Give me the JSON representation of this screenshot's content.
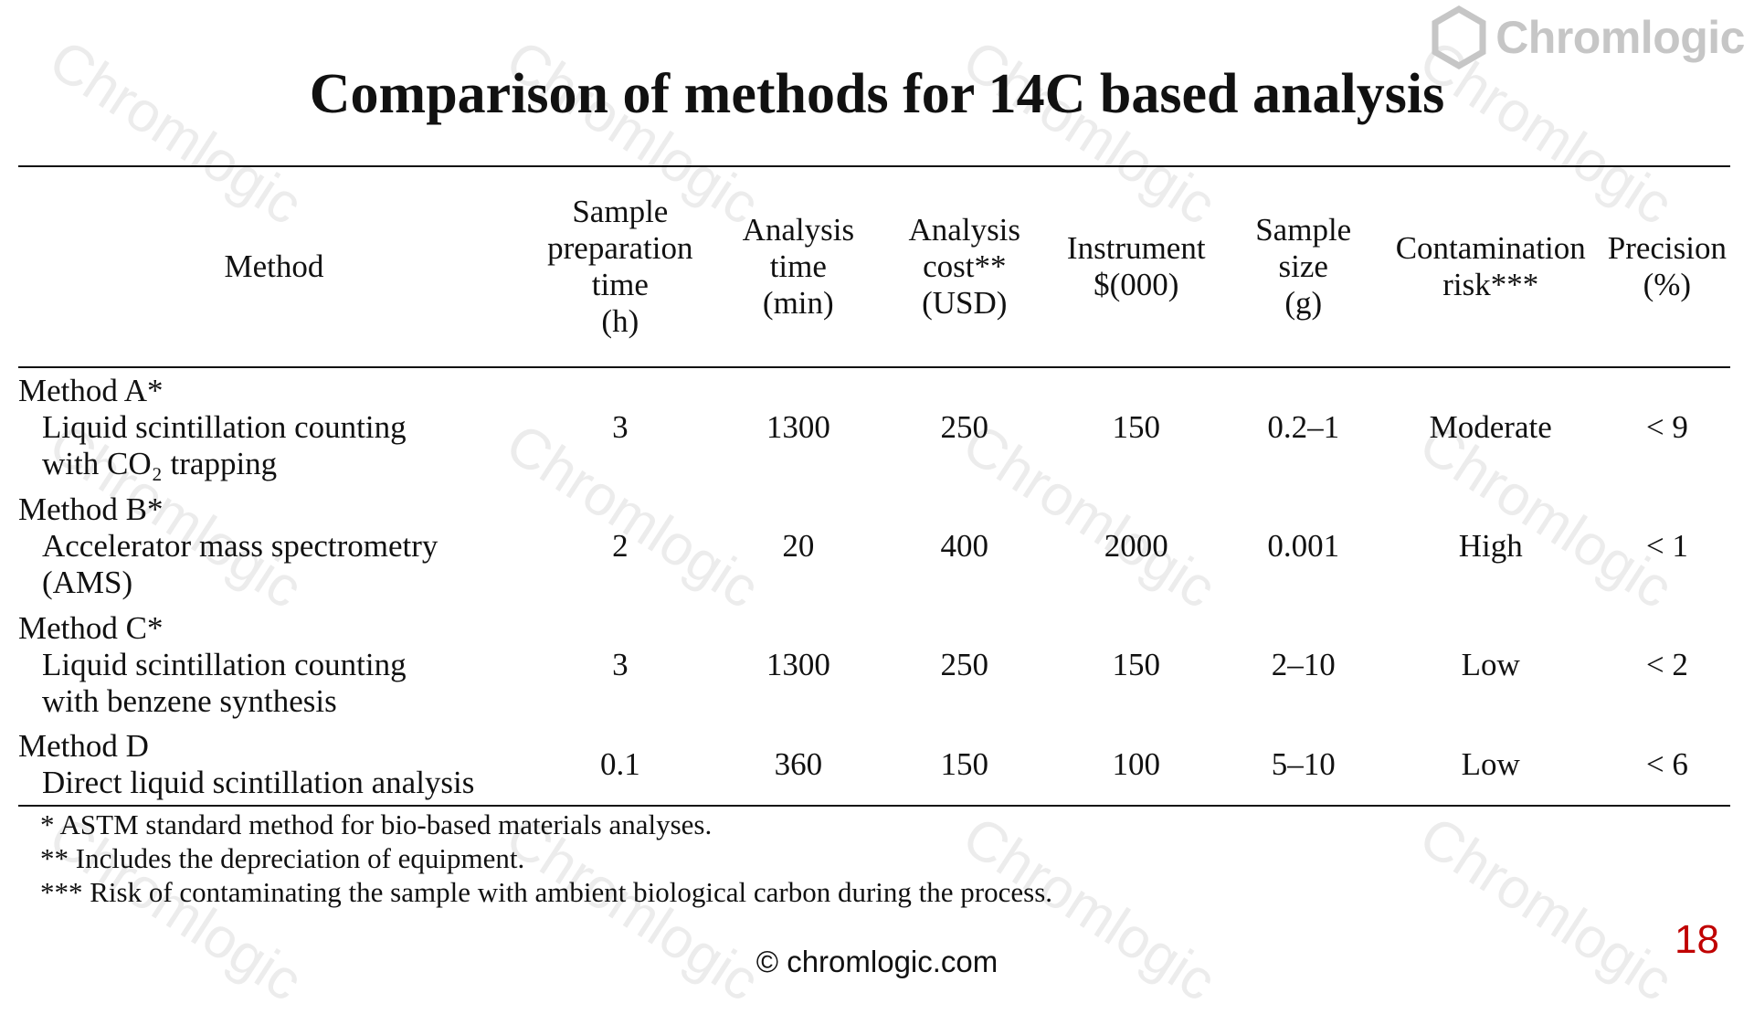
{
  "title": "Comparison of methods for 14C based analysis",
  "logo": {
    "text": "Chromlogic",
    "icon": "hexagon-logo-icon"
  },
  "watermark_text": "Chromlogic",
  "table": {
    "headers": {
      "method": "Method",
      "prep_time": [
        "Sample",
        "preparation",
        "time",
        "(h)"
      ],
      "analysis_time": [
        "Analysis",
        "time",
        "(min)"
      ],
      "analysis_cost": [
        "Analysis",
        "cost**",
        "(USD)"
      ],
      "instrument": [
        "Instrument",
        "$(000)"
      ],
      "sample_size": [
        "Sample",
        "size",
        "(g)"
      ],
      "contamination": [
        "Contamination",
        "risk***"
      ],
      "precision": [
        "Precision",
        "(%)"
      ]
    },
    "rows": [
      {
        "name": "Method A*",
        "desc_lines": [
          "Liquid scintillation counting",
          "with CO₂ trapping"
        ],
        "prep_time": "3",
        "analysis_time": "1300",
        "analysis_cost": "250",
        "instrument": "150",
        "sample_size": "0.2–1",
        "contamination": "Moderate",
        "precision": "< 9"
      },
      {
        "name": "Method B*",
        "desc_lines": [
          "Accelerator mass spectrometry",
          "(AMS)"
        ],
        "prep_time": "2",
        "analysis_time": "20",
        "analysis_cost": "400",
        "instrument": "2000",
        "sample_size": "0.001",
        "contamination": "High",
        "precision": "< 1"
      },
      {
        "name": "Method C*",
        "desc_lines": [
          "Liquid scintillation counting",
          "with benzene synthesis"
        ],
        "prep_time": "3",
        "analysis_time": "1300",
        "analysis_cost": "250",
        "instrument": "150",
        "sample_size": "2–10",
        "contamination": "Low",
        "precision": "< 2"
      },
      {
        "name": "Method D",
        "desc_lines": [
          "Direct liquid scintillation analysis"
        ],
        "prep_time": "0.1",
        "analysis_time": "360",
        "analysis_cost": "150",
        "instrument": "100",
        "sample_size": "5–10",
        "contamination": "Low",
        "precision": "< 6"
      }
    ]
  },
  "footnotes": [
    "* ASTM standard method for bio-based materials analyses.",
    "** Includes the depreciation of equipment.",
    "*** Risk of contaminating the sample with ambient biological carbon during the process."
  ],
  "copyright": "©  chromlogic.com",
  "page_number": "18"
}
